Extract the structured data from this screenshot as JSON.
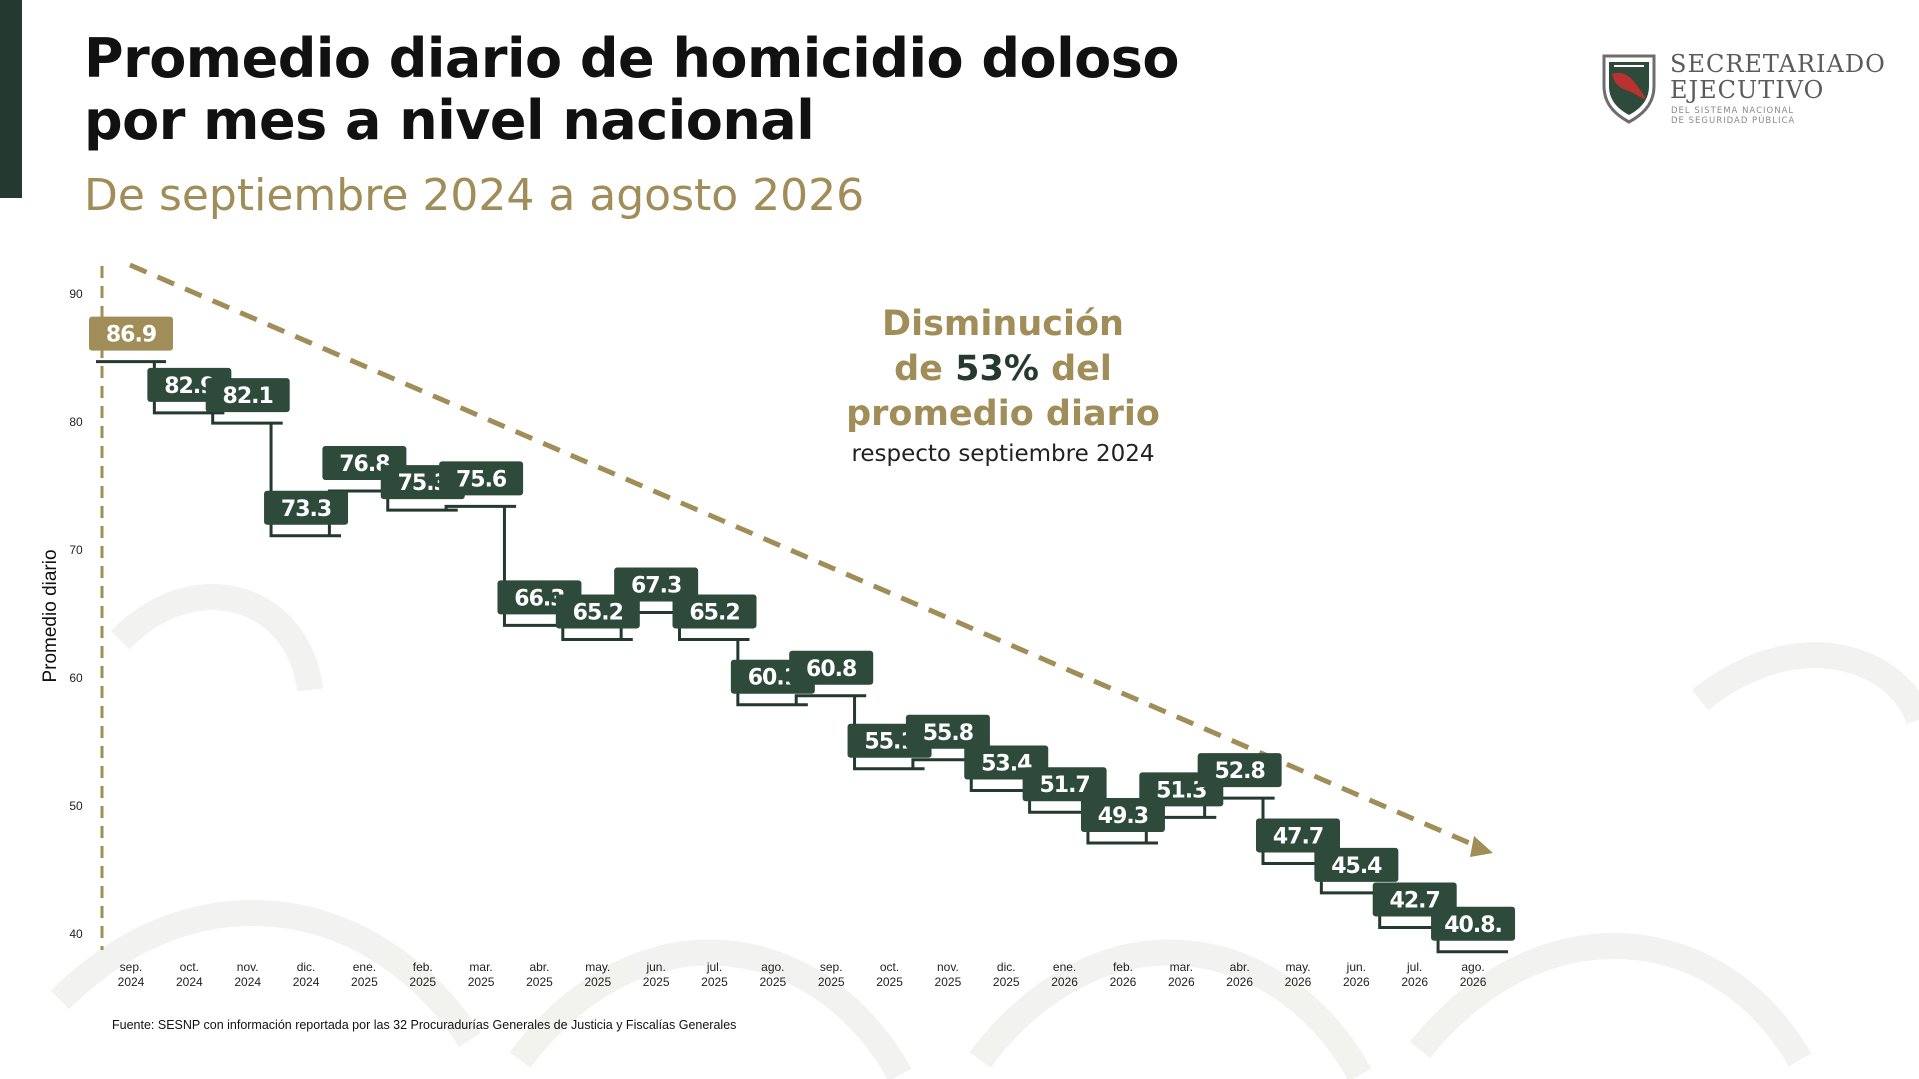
{
  "title_line1": "Promedio diario de homicidio doloso",
  "title_line2": "por mes a nivel nacional",
  "subtitle": "De septiembre 2024 a agosto 2026",
  "logo": {
    "line1": "SECRETARIADO",
    "line2": "EJECUTIVO",
    "line3": "DEL SISTEMA NACIONAL",
    "line4": "DE SEGURIDAD PÚBLICA",
    "icon": "shield-map-icon"
  },
  "annotation": {
    "line1": "Disminución",
    "line2_prefix": "de ",
    "line2_value": "53%",
    "line2_suffix": " del",
    "line3": "promedio diario",
    "line4": "respecto septiembre 2024"
  },
  "source": "Fuente: SESNP con información reportada por las 32 Procuradurías Generales de Justicia y Fiscalías Generales",
  "colors": {
    "bar_fill": "#2d4a3a",
    "bar_first": "#a08d58",
    "trend": "#a08d58",
    "title": "#111111",
    "subtitle": "#a08d58"
  },
  "chart_data": {
    "type": "line",
    "ylabel": "Promedio diario",
    "ylim": [
      40,
      90
    ],
    "yticks": [
      "40",
      "50",
      "60",
      "70",
      "80",
      "90"
    ],
    "grid": false,
    "categories": [
      [
        "sep.",
        "2024"
      ],
      [
        "oct.",
        "2024"
      ],
      [
        "nov.",
        "2024"
      ],
      [
        "dic.",
        "2024"
      ],
      [
        "ene.",
        "2025"
      ],
      [
        "feb.",
        "2025"
      ],
      [
        "mar.",
        "2025"
      ],
      [
        "abr.",
        "2025"
      ],
      [
        "may.",
        "2025"
      ],
      [
        "jun.",
        "2025"
      ],
      [
        "jul.",
        "2025"
      ],
      [
        "ago.",
        "2025"
      ],
      [
        "sep.",
        "2025"
      ],
      [
        "oct.",
        "2025"
      ],
      [
        "nov.",
        "2025"
      ],
      [
        "dic.",
        "2025"
      ],
      [
        "ene.",
        "2026"
      ],
      [
        "feb.",
        "2026"
      ],
      [
        "mar.",
        "2026"
      ],
      [
        "abr.",
        "2026"
      ],
      [
        "may.",
        "2026"
      ],
      [
        "jun.",
        "2026"
      ],
      [
        "jul.",
        "2026"
      ],
      [
        "ago.",
        "2026"
      ]
    ],
    "values": [
      86.9,
      82.9,
      82.1,
      73.3,
      76.8,
      75.3,
      75.6,
      66.3,
      65.2,
      67.3,
      65.2,
      60.1,
      60.8,
      55.1,
      55.8,
      53.4,
      51.7,
      49.3,
      51.3,
      52.8,
      47.7,
      45.4,
      42.7,
      40.8
    ],
    "labels": [
      "86.9",
      "82.9",
      "82.1",
      "73.3",
      "76.8",
      "75.3",
      "75.6",
      "66.3",
      "65.2",
      "67.3",
      "65.2",
      "60.1",
      "60.8",
      "55.1",
      "55.8",
      "53.4",
      "51.7",
      "49.3",
      "51.3",
      "52.8",
      "47.7",
      "45.4",
      "42.7",
      "40.8."
    ]
  }
}
